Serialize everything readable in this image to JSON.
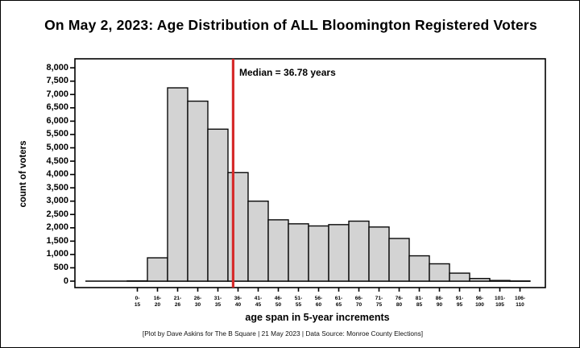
{
  "title": "On May 2, 2023: Age Distribution of ALL Bloomington Registered Voters",
  "caption": "[Plot by Dave Askins for The B Square | 21 May 2023 | Data Source: Monroe County Elections]",
  "chart_data": {
    "type": "bar",
    "title": "On May 2, 2023: Age Distribution of ALL Bloomington Registered Voters",
    "xlabel": "age span in 5-year increments",
    "ylabel": "count of voters",
    "categories": [
      "0-15",
      "16-20",
      "21-26",
      "26-30",
      "31-35",
      "36-40",
      "41-45",
      "46-50",
      "51-55",
      "56-60",
      "61-65",
      "66-70",
      "71-75",
      "76-80",
      "81-85",
      "86-90",
      "91-95",
      "96-100",
      "101-105",
      "106-110"
    ],
    "values": [
      10,
      875,
      7250,
      6750,
      5700,
      4070,
      3000,
      2300,
      2150,
      2070,
      2120,
      2250,
      2030,
      1600,
      950,
      650,
      300,
      100,
      25,
      5
    ],
    "ylim": [
      0,
      8000
    ],
    "ytick_step": 500,
    "ytick_labels": [
      "0",
      "500",
      "1,000",
      "1,500",
      "2,000",
      "2,500",
      "3,000",
      "3,500",
      "4,000",
      "4,500",
      "5,000",
      "5,500",
      "6,000",
      "6,500",
      "7,000",
      "7,500",
      "8,000"
    ],
    "grid": false,
    "legend": null,
    "median": {
      "value": 36.78,
      "label": "Median = 36.78 years"
    },
    "colors": {
      "bar_fill": "#d3d3d3",
      "bar_stroke": "#0a0a0a",
      "median_line": "#d62b2b",
      "axis": "#000000",
      "background": "#ffffff"
    }
  }
}
